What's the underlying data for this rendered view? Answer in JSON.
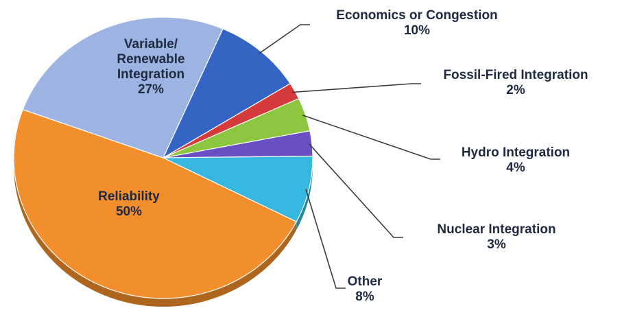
{
  "chart_data": {
    "type": "pie",
    "slices": [
      {
        "name": "Reliability",
        "value": 50,
        "value_label": "50%",
        "color": "#f28e2b"
      },
      {
        "name": "Variable/ Renewable Integration",
        "value": 27,
        "value_label": "27%",
        "color": "#9db4e3"
      },
      {
        "name": "Economics or Congestion",
        "value": 10,
        "value_label": "10%",
        "color": "#3565c4"
      },
      {
        "name": "Fossil-Fired Integration",
        "value": 2,
        "value_label": "2%",
        "color": "#d63b3b"
      },
      {
        "name": "Hydro Integration",
        "value": 4,
        "value_label": "4%",
        "color": "#8cc63f"
      },
      {
        "name": "Nuclear Integration",
        "value": 3,
        "value_label": "3%",
        "color": "#6a4fc2"
      },
      {
        "name": "Other",
        "value": 8,
        "value_label": "8%",
        "color": "#35b7df"
      }
    ],
    "label_lines": {
      "Reliability": [
        "Reliability"
      ],
      "Variable/ Renewable Integration": [
        "Variable/",
        "Renewable",
        "Integration"
      ],
      "Economics or Congestion": [
        "Economics or Congestion"
      ],
      "Fossil-Fired Integration": [
        "Fossil-Fired Integration"
      ],
      "Hydro Integration": [
        "Hydro Integration"
      ],
      "Nuclear Integration": [
        "Nuclear Integration"
      ],
      "Other": [
        "Other"
      ]
    },
    "legend": "none",
    "style": "3d-tilted"
  }
}
